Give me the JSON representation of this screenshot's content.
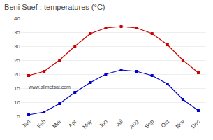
{
  "chart_data": {
    "type": "line",
    "title": "Beni Suef : temperatures (°C)",
    "categories": [
      "Jan",
      "Feb",
      "Mar",
      "Apr",
      "May",
      "Jun",
      "Jul",
      "Aug",
      "Sep",
      "Oct",
      "Nov",
      "Dec"
    ],
    "series": [
      {
        "color": "#cc0000",
        "marker": "square",
        "values": [
          19.5,
          21.0,
          25.0,
          30.0,
          34.5,
          36.5,
          37.0,
          36.5,
          34.5,
          30.5,
          25.0,
          20.5
        ]
      },
      {
        "color": "#0000cc",
        "marker": "square",
        "values": [
          5.5,
          6.5,
          9.5,
          13.5,
          17.0,
          20.0,
          21.5,
          21.0,
          19.5,
          16.5,
          11.0,
          7.0
        ]
      }
    ],
    "ylim": [
      5,
      40
    ],
    "yticks": [
      5,
      10,
      15,
      20,
      25,
      30,
      35,
      40
    ],
    "grid": "y",
    "annotations": [
      "www.allmetsat.com"
    ]
  }
}
